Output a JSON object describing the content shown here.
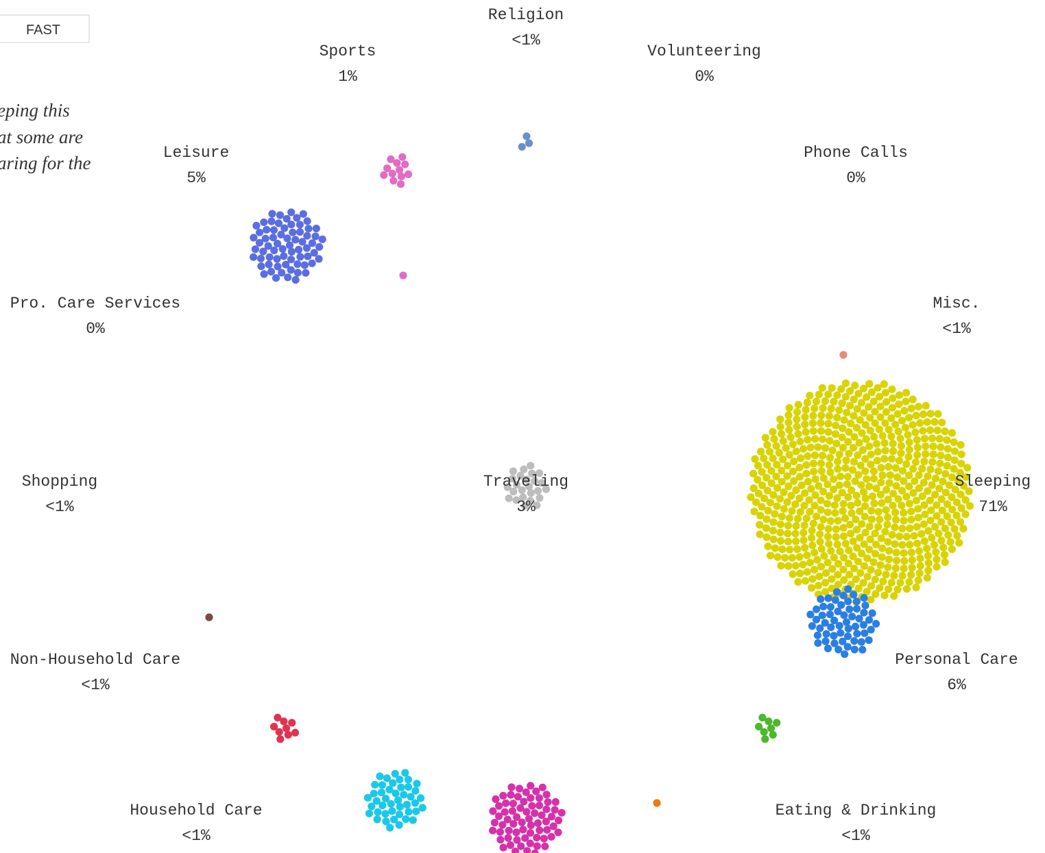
{
  "button": "FAST",
  "intro_lines": [
    "eping this",
    "at some are",
    "aring for the"
  ],
  "activities": [
    {
      "name": "Religion",
      "share": "<1%"
    },
    {
      "name": "Sports",
      "share": "1%"
    },
    {
      "name": "Volunteering",
      "share": "0%"
    },
    {
      "name": "Leisure",
      "share": "5%"
    },
    {
      "name": "Phone Calls",
      "share": "0%"
    },
    {
      "name": "Pro. Care Services",
      "share": "0%"
    },
    {
      "name": "Misc.",
      "share": "<1%"
    },
    {
      "name": "Shopping",
      "share": "<1%"
    },
    {
      "name": "Traveling",
      "share": "3%"
    },
    {
      "name": "Sleeping",
      "share": "71%"
    },
    {
      "name": "Non-Household Care",
      "share": "<1%"
    },
    {
      "name": "Personal Care",
      "share": "6%"
    },
    {
      "name": "Household Care",
      "share": "<1%"
    },
    {
      "name": "Eating & Drinking",
      "share": "<1%"
    }
  ],
  "clusters": [
    {
      "color": "#6a8fcf",
      "dots": 3
    },
    {
      "color": "#e36bc4",
      "dots": 12
    },
    {
      "color": "#e36bc4",
      "dots": 1
    },
    {
      "color": "#5b6ee1",
      "dots": 70
    },
    {
      "color": "#e8897a",
      "dots": 1
    },
    {
      "color": "#bdbdbd",
      "dots": 25
    },
    {
      "color": "#d9d300",
      "dots": 640
    },
    {
      "color": "#2b7fe3",
      "dots": 60
    },
    {
      "color": "#7a4a45",
      "dots": 1
    },
    {
      "color": "#e0334f",
      "dots": 9
    },
    {
      "color": "#1ac8ea",
      "dots": 45
    },
    {
      "color": "#d631ab",
      "dots": 70
    },
    {
      "color": "#f07a10",
      "dots": 1
    },
    {
      "color": "#4cb82a",
      "dots": 8
    }
  ]
}
